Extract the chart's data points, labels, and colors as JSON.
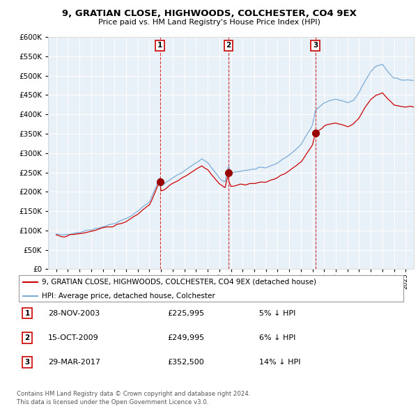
{
  "title": "9, GRATIAN CLOSE, HIGHWOODS, COLCHESTER, CO4 9EX",
  "subtitle": "Price paid vs. HM Land Registry's House Price Index (HPI)",
  "legend_entry1": "9, GRATIAN CLOSE, HIGHWOODS, COLCHESTER, CO4 9EX (detached house)",
  "legend_entry2": "HPI: Average price, detached house, Colchester",
  "footer1": "Contains HM Land Registry data © Crown copyright and database right 2024.",
  "footer2": "This data is licensed under the Open Government Licence v3.0.",
  "transactions": [
    {
      "num": 1,
      "date": "28-NOV-2003",
      "price": "£225,995",
      "pct": "5% ↓ HPI"
    },
    {
      "num": 2,
      "date": "15-OCT-2009",
      "price": "£249,995",
      "pct": "6% ↓ HPI"
    },
    {
      "num": 3,
      "date": "29-MAR-2017",
      "price": "£352,500",
      "pct": "14% ↓ HPI"
    }
  ],
  "sale_years": [
    2003.91,
    2009.79,
    2017.24
  ],
  "sale_prices": [
    225995,
    249995,
    352500
  ],
  "red_color": "#cc0000",
  "blue_color": "#7aacd6",
  "marker_color": "#990000",
  "plot_bg": "#e8f0f8",
  "ylim": [
    0,
    600000
  ],
  "yticks": [
    0,
    50000,
    100000,
    150000,
    200000,
    250000,
    300000,
    350000,
    400000,
    450000,
    500000,
    550000,
    600000
  ]
}
